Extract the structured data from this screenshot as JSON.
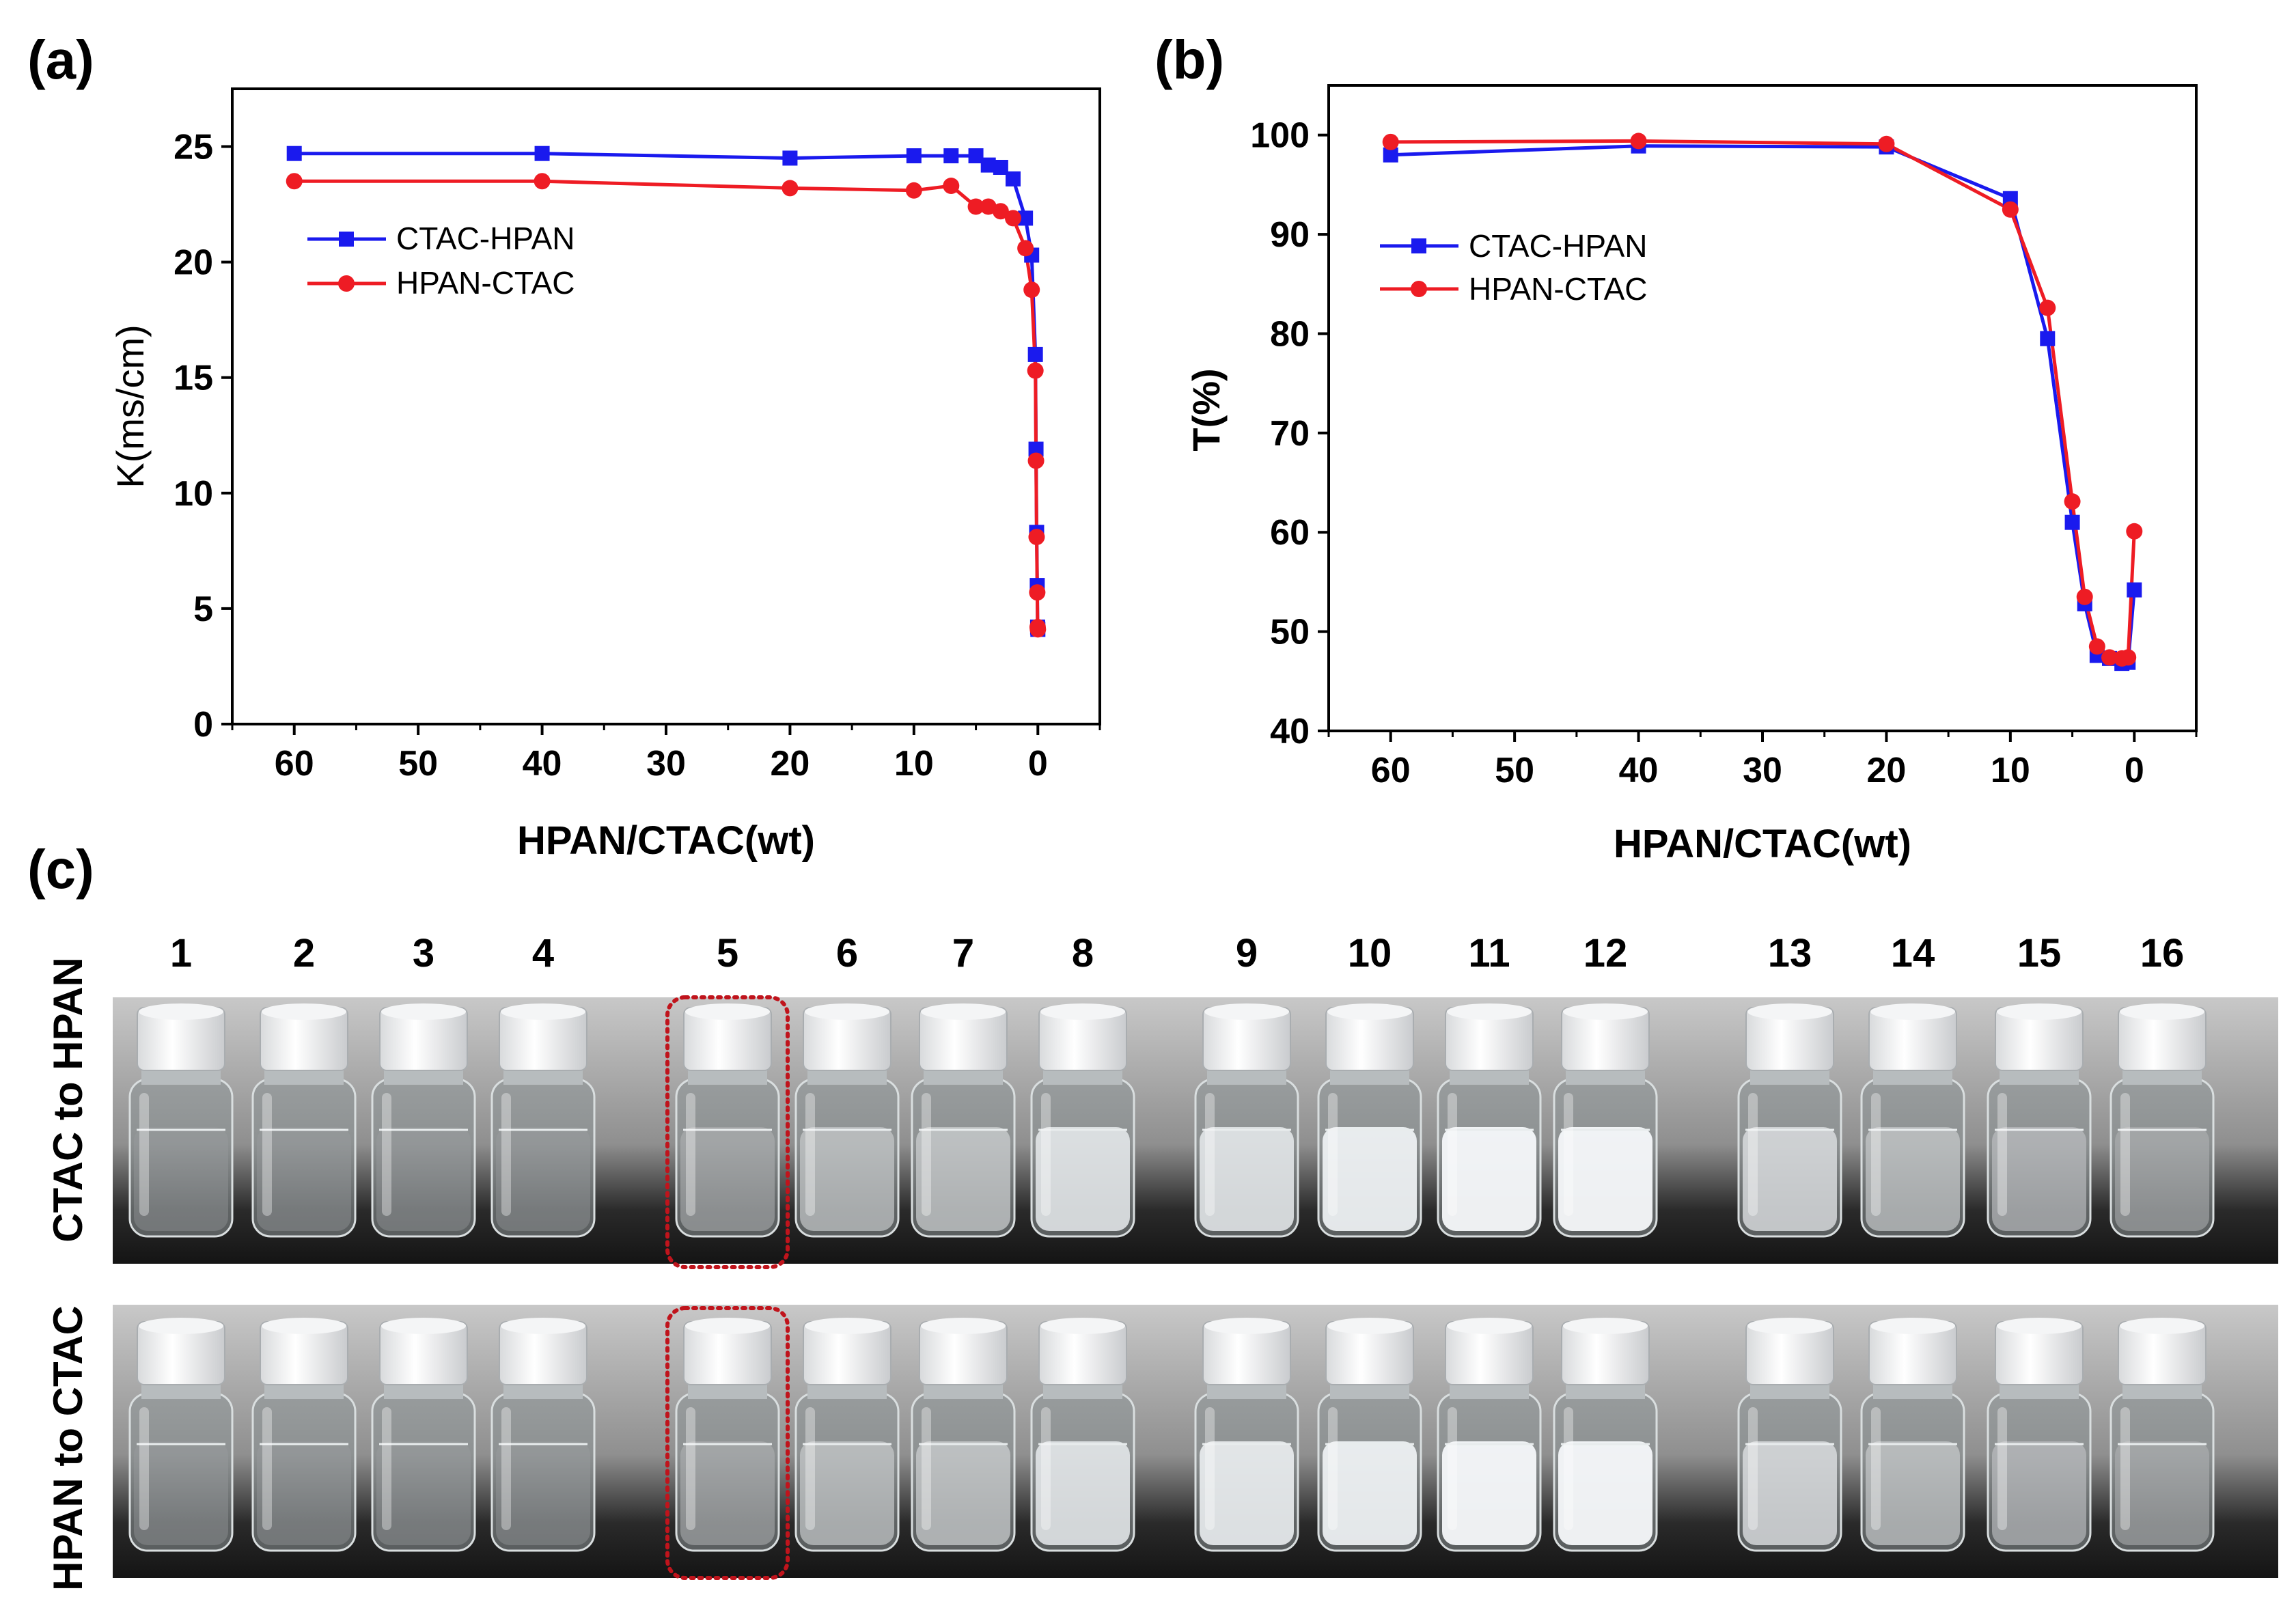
{
  "panels": {
    "a": "(a)",
    "b": "(b)",
    "c": "(c)"
  },
  "colors": {
    "ctac_hpan": "#1a1aee",
    "hpan_ctac": "#ee1c24",
    "highlight": "#c0141c"
  },
  "chart_data": [
    {
      "type": "line",
      "panel": "(a)",
      "xlabel": "HPAN/CTAC(wt)",
      "ylabel": "K(ms/cm)",
      "xlim": [
        65,
        -5
      ],
      "ylim": [
        0,
        27.5
      ],
      "xticks": [
        "60",
        "50",
        "40",
        "30",
        "20",
        "10",
        "0"
      ],
      "yticks": [
        "0",
        "5",
        "10",
        "15",
        "20",
        "25"
      ],
      "legend": "upper-left",
      "series": [
        {
          "name": "CTAC-HPAN",
          "marker": "square",
          "x": [
            60,
            40,
            20,
            10,
            7,
            5,
            4,
            3,
            2,
            1,
            0.5,
            0.2,
            0.15,
            0.1,
            0.05,
            0.02,
            0
          ],
          "y": [
            24.7,
            24.7,
            24.5,
            24.6,
            24.6,
            24.6,
            24.2,
            24.1,
            23.6,
            21.9,
            20.3,
            16.0,
            11.9,
            8.3,
            6.0,
            4.2,
            4.1
          ]
        },
        {
          "name": "HPAN-CTAC",
          "marker": "circle",
          "x": [
            60,
            40,
            20,
            10,
            7,
            5,
            4,
            3,
            2,
            1,
            0.5,
            0.2,
            0.15,
            0.1,
            0.05,
            0.02,
            0
          ],
          "y": [
            23.5,
            23.5,
            23.2,
            23.1,
            23.3,
            22.4,
            22.4,
            22.2,
            21.9,
            20.6,
            18.8,
            15.3,
            11.4,
            8.1,
            5.7,
            4.2,
            4.1
          ]
        }
      ]
    },
    {
      "type": "line",
      "panel": "(b)",
      "xlabel": "HPAN/CTAC(wt)",
      "ylabel": "T(%)",
      "xlim": [
        65,
        -5
      ],
      "ylim": [
        40,
        105
      ],
      "xticks": [
        "60",
        "50",
        "40",
        "30",
        "20",
        "10",
        "0"
      ],
      "yticks": [
        "40",
        "50",
        "60",
        "70",
        "80",
        "90",
        "100"
      ],
      "legend": "center-left",
      "series": [
        {
          "name": "CTAC-HPAN",
          "marker": "square",
          "x": [
            60,
            40,
            20,
            10,
            7,
            5,
            4,
            3,
            2,
            1,
            0.5,
            0
          ],
          "y": [
            98.0,
            98.9,
            98.8,
            93.6,
            79.5,
            61.0,
            52.8,
            47.6,
            47.3,
            46.8,
            46.9,
            54.2
          ]
        },
        {
          "name": "HPAN-CTAC",
          "marker": "circle",
          "x": [
            60,
            40,
            20,
            10,
            7,
            5,
            4,
            3,
            2,
            1,
            0.5,
            0
          ],
          "y": [
            99.3,
            99.4,
            99.1,
            92.5,
            82.6,
            63.1,
            53.5,
            48.5,
            47.4,
            47.3,
            47.4,
            60.1
          ]
        }
      ]
    }
  ],
  "photo": {
    "rows": [
      "CTAC to HPAN",
      "HPAN to CTAC"
    ],
    "sample_numbers": [
      "1",
      "2",
      "3",
      "4",
      "5",
      "6",
      "7",
      "8",
      "9",
      "10",
      "11",
      "12",
      "13",
      "14",
      "15",
      "16"
    ],
    "highlighted_sample": "5",
    "turbidity_top": [
      0.05,
      0.05,
      0.06,
      0.06,
      0.3,
      0.55,
      0.6,
      0.85,
      0.85,
      0.95,
      1.0,
      1.0,
      0.75,
      0.55,
      0.45,
      0.3
    ],
    "turbidity_bottom": [
      0.05,
      0.05,
      0.06,
      0.06,
      0.3,
      0.55,
      0.6,
      0.85,
      0.9,
      0.95,
      1.0,
      1.0,
      0.75,
      0.55,
      0.45,
      0.3
    ]
  }
}
